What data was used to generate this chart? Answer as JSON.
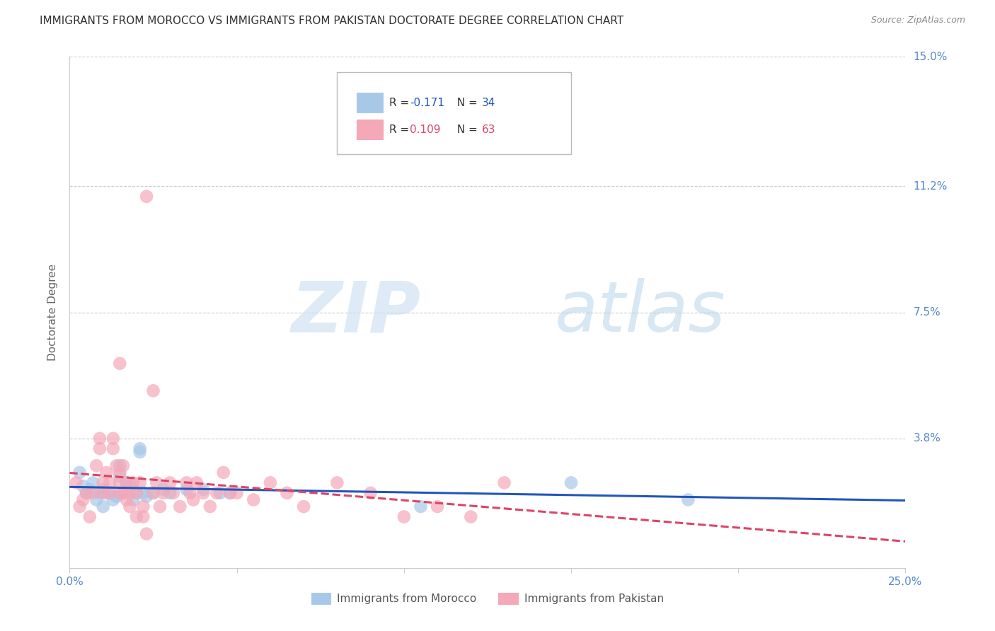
{
  "title": "IMMIGRANTS FROM MOROCCO VS IMMIGRANTS FROM PAKISTAN DOCTORATE DEGREE CORRELATION CHART",
  "source": "Source: ZipAtlas.com",
  "ylabel": "Doctorate Degree",
  "xlim": [
    0.0,
    0.25
  ],
  "ylim": [
    0.0,
    0.15
  ],
  "xticks": [
    0.0,
    0.05,
    0.1,
    0.15,
    0.2,
    0.25
  ],
  "xticklabels": [
    "0.0%",
    "",
    "",
    "",
    "",
    "25.0%"
  ],
  "yticks": [
    0.0,
    0.038,
    0.075,
    0.112,
    0.15
  ],
  "yticklabels": [
    "",
    "3.8%",
    "7.5%",
    "11.2%",
    "15.0%"
  ],
  "morocco_color": "#a8c8e8",
  "pakistan_color": "#f4a8b8",
  "morocco_line_color": "#2255bb",
  "pakistan_line_color": "#dd4466",
  "morocco_R": -0.171,
  "morocco_N": 34,
  "pakistan_R": 0.109,
  "pakistan_N": 63,
  "legend_label_morocco": "Immigrants from Morocco",
  "legend_label_pakistan": "Immigrants from Pakistan",
  "watermark_zip": "ZIP",
  "watermark_atlas": "atlas",
  "background_color": "#ffffff",
  "grid_color": "#cccccc",
  "title_fontsize": 11,
  "tick_color": "#5588cc",
  "legend_text_color": "#333333",
  "legend_value_color": "#2255bb",
  "morocco_points": [
    [
      0.003,
      0.028
    ],
    [
      0.004,
      0.024
    ],
    [
      0.005,
      0.022
    ],
    [
      0.006,
      0.023
    ],
    [
      0.007,
      0.025
    ],
    [
      0.008,
      0.02
    ],
    [
      0.009,
      0.022
    ],
    [
      0.01,
      0.023
    ],
    [
      0.01,
      0.018
    ],
    [
      0.011,
      0.022
    ],
    [
      0.012,
      0.022
    ],
    [
      0.013,
      0.02
    ],
    [
      0.014,
      0.021
    ],
    [
      0.015,
      0.03
    ],
    [
      0.015,
      0.027
    ],
    [
      0.016,
      0.022
    ],
    [
      0.017,
      0.025
    ],
    [
      0.018,
      0.024
    ],
    [
      0.019,
      0.02
    ],
    [
      0.02,
      0.022
    ],
    [
      0.021,
      0.035
    ],
    [
      0.021,
      0.034
    ],
    [
      0.022,
      0.022
    ],
    [
      0.023,
      0.021
    ],
    [
      0.025,
      0.022
    ],
    [
      0.028,
      0.023
    ],
    [
      0.03,
      0.022
    ],
    [
      0.035,
      0.023
    ],
    [
      0.04,
      0.023
    ],
    [
      0.045,
      0.022
    ],
    [
      0.048,
      0.022
    ],
    [
      0.105,
      0.018
    ],
    [
      0.15,
      0.025
    ],
    [
      0.185,
      0.02
    ]
  ],
  "pakistan_points": [
    [
      0.002,
      0.025
    ],
    [
      0.003,
      0.018
    ],
    [
      0.004,
      0.02
    ],
    [
      0.005,
      0.022
    ],
    [
      0.006,
      0.015
    ],
    [
      0.007,
      0.022
    ],
    [
      0.008,
      0.03
    ],
    [
      0.009,
      0.038
    ],
    [
      0.009,
      0.035
    ],
    [
      0.01,
      0.025
    ],
    [
      0.01,
      0.022
    ],
    [
      0.011,
      0.028
    ],
    [
      0.012,
      0.025
    ],
    [
      0.012,
      0.022
    ],
    [
      0.013,
      0.038
    ],
    [
      0.013,
      0.035
    ],
    [
      0.014,
      0.03
    ],
    [
      0.015,
      0.025
    ],
    [
      0.015,
      0.028
    ],
    [
      0.015,
      0.022
    ],
    [
      0.016,
      0.03
    ],
    [
      0.016,
      0.022
    ],
    [
      0.017,
      0.025
    ],
    [
      0.017,
      0.02
    ],
    [
      0.018,
      0.022
    ],
    [
      0.018,
      0.018
    ],
    [
      0.019,
      0.025
    ],
    [
      0.02,
      0.022
    ],
    [
      0.02,
      0.015
    ],
    [
      0.021,
      0.025
    ],
    [
      0.022,
      0.018
    ],
    [
      0.022,
      0.015
    ],
    [
      0.023,
      0.01
    ],
    [
      0.025,
      0.022
    ],
    [
      0.026,
      0.025
    ],
    [
      0.027,
      0.018
    ],
    [
      0.028,
      0.022
    ],
    [
      0.03,
      0.025
    ],
    [
      0.031,
      0.022
    ],
    [
      0.033,
      0.018
    ],
    [
      0.035,
      0.025
    ],
    [
      0.036,
      0.022
    ],
    [
      0.037,
      0.02
    ],
    [
      0.038,
      0.025
    ],
    [
      0.04,
      0.022
    ],
    [
      0.042,
      0.018
    ],
    [
      0.044,
      0.022
    ],
    [
      0.046,
      0.028
    ],
    [
      0.048,
      0.022
    ],
    [
      0.05,
      0.022
    ],
    [
      0.055,
      0.02
    ],
    [
      0.06,
      0.025
    ],
    [
      0.065,
      0.022
    ],
    [
      0.07,
      0.018
    ],
    [
      0.08,
      0.025
    ],
    [
      0.09,
      0.022
    ],
    [
      0.1,
      0.015
    ],
    [
      0.11,
      0.018
    ],
    [
      0.12,
      0.015
    ],
    [
      0.023,
      0.109
    ],
    [
      0.015,
      0.06
    ],
    [
      0.025,
      0.052
    ],
    [
      0.13,
      0.025
    ]
  ]
}
